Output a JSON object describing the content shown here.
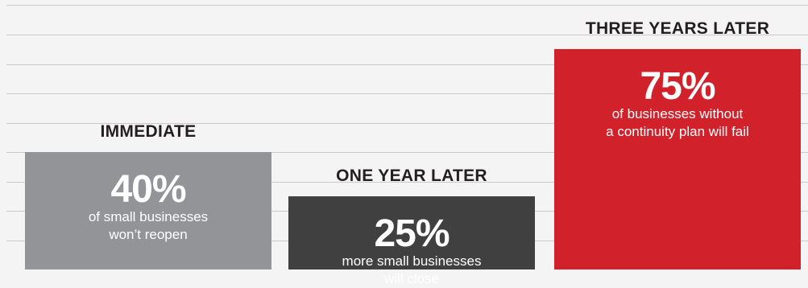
{
  "chart_data": {
    "type": "bar",
    "categories": [
      "IMMEDIATE",
      "ONE YEAR LATER",
      "THREE YEARS LATER"
    ],
    "values": [
      40,
      25,
      75
    ],
    "value_labels": [
      "40%",
      "25%",
      "75%"
    ],
    "captions": [
      [
        "of small businesses",
        "won’t reopen"
      ],
      [
        "more small businesses",
        "will close"
      ],
      [
        "of businesses without",
        "a continuity plan will fail"
      ]
    ],
    "colors": [
      "#929497",
      "#404041",
      "#d1222b"
    ],
    "title": "",
    "xlabel": "",
    "ylabel": "",
    "grid": true
  }
}
